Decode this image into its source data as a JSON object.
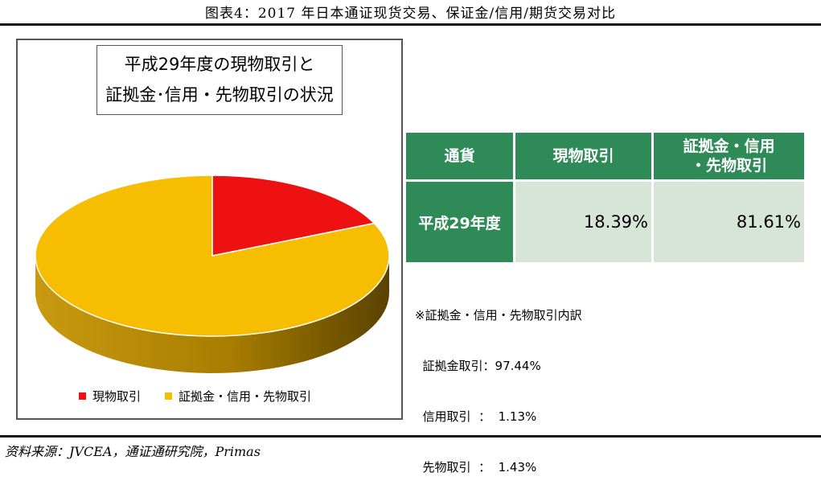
{
  "figure_title": "图表4：2017 年日本通证现货交易、保证金/信用/期货交易对比",
  "source": "资料来源：JVCEA，通证通研究院，Primas",
  "chart_data": {
    "type": "pie",
    "title_lines": [
      "平成29年度の現物取引と",
      "証拠金･信用・先物取引の状況"
    ],
    "slices": [
      {
        "name": "現物取引",
        "value": 18.39,
        "color": "#ee1111"
      },
      {
        "name": "証拠金・信用・先物取引",
        "value": 81.61,
        "color": "#f7bd00"
      }
    ],
    "legend_position": "bottom",
    "side_color": "#a87d00"
  },
  "table": {
    "headers": [
      "通貨",
      "現物取引",
      "証拠金・信用\n・先物取引"
    ],
    "rows": [
      {
        "label": "平成29年度",
        "values": [
          "18.39%",
          "81.61%"
        ]
      }
    ],
    "header_color": "#2e8b57",
    "cell_color": "#d6e5d8"
  },
  "note": {
    "lines": [
      "※証拠金・信用・先物取引内訳",
      "  証拠金取引：97.44%",
      "  信用取引  ：  1.13%",
      "  先物取引  ：  1.43%"
    ]
  }
}
